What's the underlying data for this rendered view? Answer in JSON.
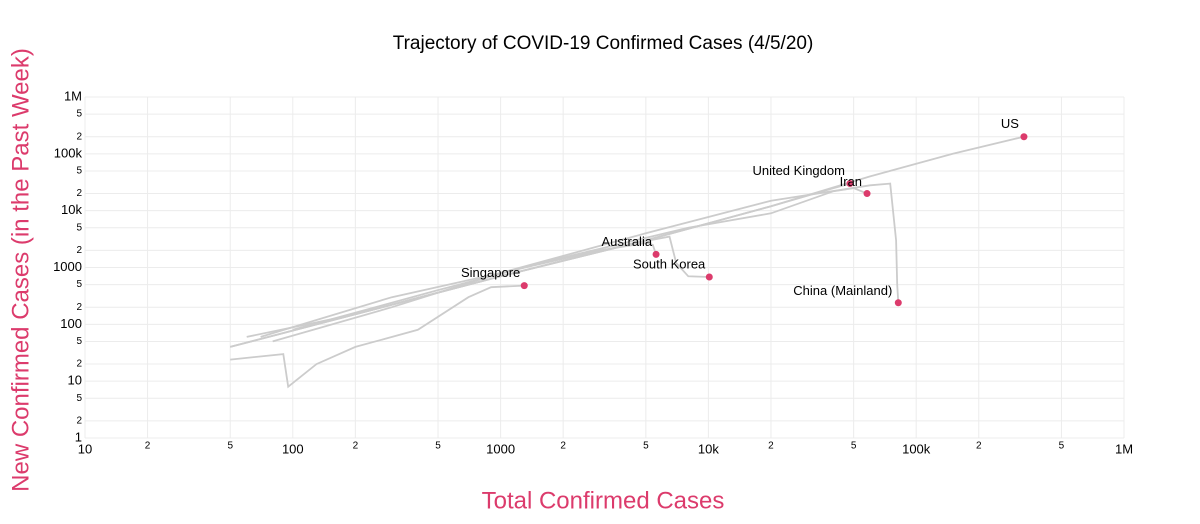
{
  "chart_data": {
    "type": "line",
    "title": "Trajectory of COVID-19 Confirmed Cases (4/5/20)",
    "x_label": "Total Confirmed Cases",
    "y_label": "New Confirmed Cases (in the Past Week)",
    "x_scale": "log",
    "y_scale": "log",
    "grid": true,
    "line_color": "#cccccc",
    "point_color": "#dc3b6c",
    "axis_title_color": "#dc3b6c",
    "xlim": [
      10,
      1000000
    ],
    "xticks": [
      10,
      {
        "value": 20,
        "label": "2"
      },
      {
        "value": 50,
        "label": "5"
      },
      100,
      {
        "value": 200,
        "label": "2"
      },
      {
        "value": 500,
        "label": "5"
      },
      1000,
      {
        "value": 2000,
        "label": "2"
      },
      {
        "value": 5000,
        "label": "5"
      },
      {
        "value": 10000,
        "label": "10k"
      },
      {
        "value": 20000,
        "label": "2"
      },
      {
        "value": 50000,
        "label": "5"
      },
      {
        "value": 100000,
        "label": "100k"
      },
      {
        "value": 200000,
        "label": "2"
      },
      {
        "value": 500000,
        "label": "5"
      },
      {
        "value": 1000000,
        "label": "1M"
      }
    ],
    "ylim": [
      1,
      1000000
    ],
    "yticks": [
      1,
      2,
      5,
      10,
      {
        "value": 20,
        "label": "2"
      },
      {
        "value": 50,
        "label": "5"
      },
      100,
      {
        "value": 200,
        "label": "2"
      },
      {
        "value": 500,
        "label": "5"
      },
      1000,
      {
        "value": 2000,
        "label": "2"
      },
      {
        "value": 5000,
        "label": "5"
      },
      {
        "value": 10000,
        "label": "10k"
      },
      {
        "value": 20000,
        "label": "2"
      },
      {
        "value": 50000,
        "label": "5"
      },
      {
        "value": 100000,
        "label": "100k"
      },
      {
        "value": 200000,
        "label": "2"
      },
      {
        "value": 500000,
        "label": "5"
      },
      {
        "value": 1000000,
        "label": "1M"
      }
    ],
    "series": [
      {
        "name": "US",
        "x": [
          60,
          200,
          1000,
          5000,
          20000,
          60000,
          150000,
          330000
        ],
        "values": [
          60,
          150,
          700,
          3000,
          12000,
          40000,
          100000,
          200000
        ]
      },
      {
        "name": "United Kingdom",
        "x": [
          50,
          200,
          1000,
          5000,
          20000,
          40000,
          48000
        ],
        "values": [
          40,
          150,
          700,
          3000,
          12000,
          25000,
          30000
        ]
      },
      {
        "name": "Iran",
        "x": [
          100,
          500,
          2000,
          8000,
          20000,
          40000,
          50000,
          58000
        ],
        "values": [
          80,
          400,
          1500,
          5000,
          9000,
          22000,
          25000,
          20000
        ]
      },
      {
        "name": "China (Mainland)",
        "x": [
          80,
          300,
          1000,
          5000,
          20000,
          60000,
          75000,
          80000,
          81000,
          82000
        ],
        "values": [
          50,
          200,
          800,
          4000,
          15000,
          28000,
          30000,
          3000,
          500,
          240
        ]
      },
      {
        "name": "Australia",
        "x": [
          70,
          300,
          1000,
          3000,
          5000,
          5400,
          5600
        ],
        "values": [
          60,
          300,
          800,
          2000,
          2700,
          2500,
          1700
        ]
      },
      {
        "name": "South Korea",
        "x": [
          50,
          200,
          1000,
          4000,
          6500,
          7000,
          8000,
          10100
        ],
        "values": [
          40,
          150,
          700,
          2500,
          3500,
          1200,
          700,
          680
        ]
      },
      {
        "name": "Singapore",
        "x": [
          50,
          90,
          95,
          130,
          200,
          400,
          700,
          900,
          1300
        ],
        "values": [
          24,
          30,
          8,
          20,
          40,
          80,
          300,
          450,
          480
        ]
      }
    ]
  }
}
